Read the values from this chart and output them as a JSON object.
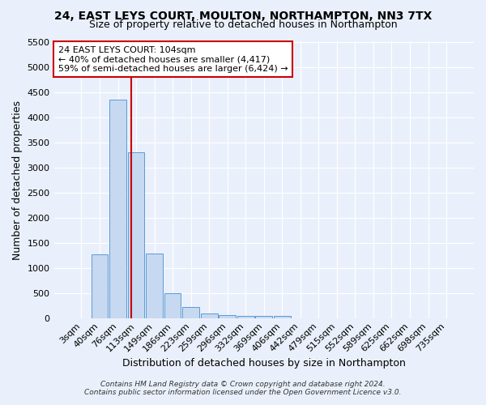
{
  "title": "24, EAST LEYS COURT, MOULTON, NORTHAMPTON, NN3 7TX",
  "subtitle": "Size of property relative to detached houses in Northampton",
  "xlabel": "Distribution of detached houses by size in Northampton",
  "ylabel": "Number of detached properties",
  "bar_labels": [
    "3sqm",
    "40sqm",
    "76sqm",
    "113sqm",
    "149sqm",
    "186sqm",
    "223sqm",
    "259sqm",
    "296sqm",
    "332sqm",
    "369sqm",
    "406sqm",
    "442sqm",
    "479sqm",
    "515sqm",
    "552sqm",
    "589sqm",
    "625sqm",
    "662sqm",
    "698sqm",
    "735sqm"
  ],
  "bar_values": [
    0,
    1270,
    4350,
    3300,
    1280,
    490,
    215,
    90,
    60,
    50,
    45,
    40,
    0,
    0,
    0,
    0,
    0,
    0,
    0,
    0,
    0
  ],
  "bar_color": "#c6d9f0",
  "bar_edge_color": "#5b9bd5",
  "ylim": [
    0,
    5500
  ],
  "yticks": [
    0,
    500,
    1000,
    1500,
    2000,
    2500,
    3000,
    3500,
    4000,
    4500,
    5000,
    5500
  ],
  "vline_x": 2.72,
  "vline_color": "#cc0000",
  "annotation_box_text": "24 EAST LEYS COURT: 104sqm\n← 40% of detached houses are smaller (4,417)\n59% of semi-detached houses are larger (6,424) →",
  "footer_line1": "Contains HM Land Registry data © Crown copyright and database right 2024.",
  "footer_line2": "Contains public sector information licensed under the Open Government Licence v3.0.",
  "background_color": "#eaf0fb",
  "grid_color": "#ffffff",
  "title_fontsize": 10,
  "subtitle_fontsize": 9,
  "axis_label_fontsize": 9,
  "tick_fontsize": 8,
  "annotation_fontsize": 8,
  "footer_fontsize": 6.5
}
